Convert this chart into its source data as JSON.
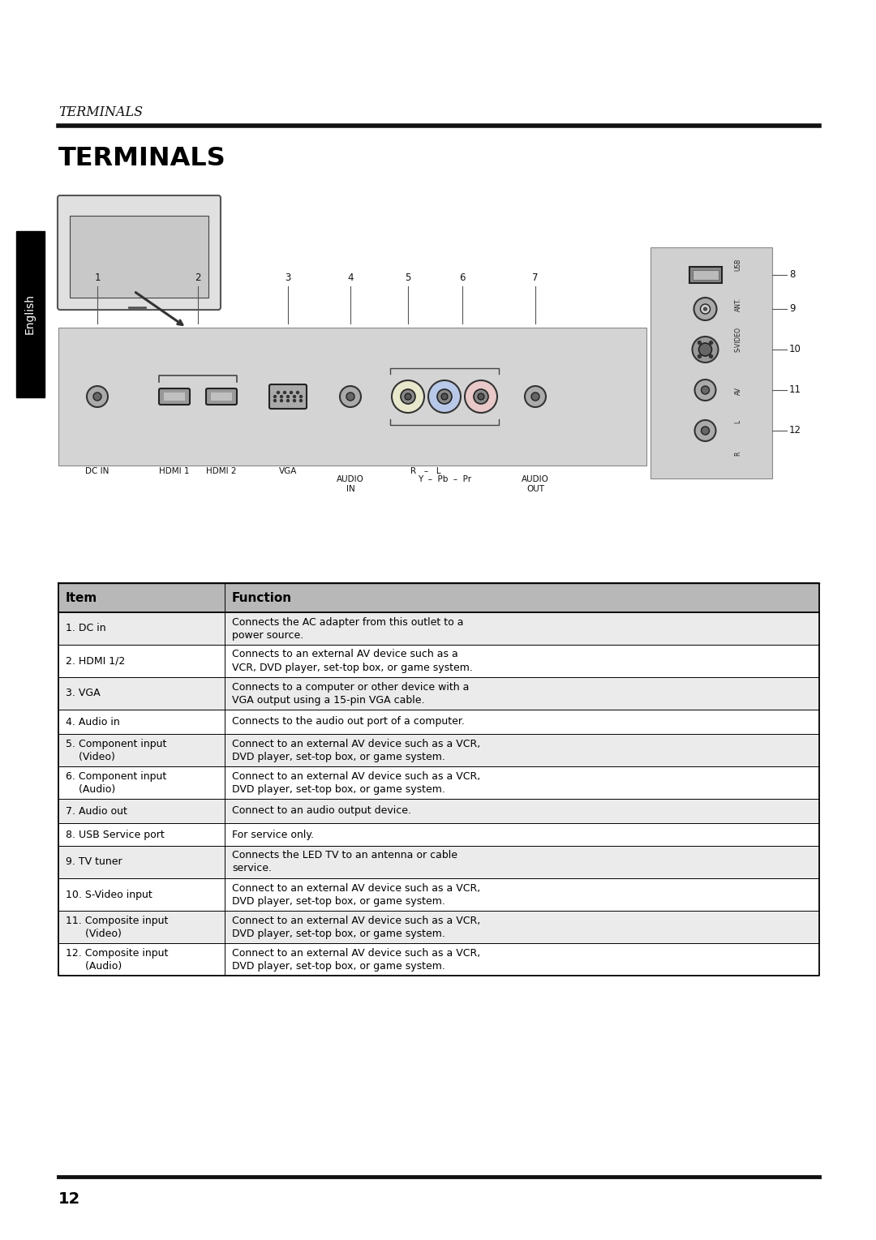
{
  "page_bg": "#ffffff",
  "header_italic_text": "TERMINALS",
  "header_bold_text": "TERMINALS",
  "table_header_bg": "#b8b8b8",
  "table_row_bg_odd": "#ebebeb",
  "table_row_bg_even": "#ffffff",
  "table_border_color": "#000000",
  "table_col1_header": "Item",
  "table_col2_header": "Function",
  "table_rows": [
    [
      "1. DC in",
      "Connects the AC adapter from this outlet to a\npower source."
    ],
    [
      "2. HDMI 1/2",
      "Connects to an external AV device such as a\nVCR, DVD player, set-top box, or game system."
    ],
    [
      "3. VGA",
      "Connects to a computer or other device with a\nVGA output using a 15-pin VGA cable."
    ],
    [
      "4. Audio in",
      "Connects to the audio out port of a computer."
    ],
    [
      "5. Component input\n    (Video)",
      "Connect to an external AV device such as a VCR,\nDVD player, set-top box, or game system."
    ],
    [
      "6. Component input\n    (Audio)",
      "Connect to an external AV device such as a VCR,\nDVD player, set-top box, or game system."
    ],
    [
      "7. Audio out",
      "Connect to an audio output device."
    ],
    [
      "8. USB Service port",
      "For service only."
    ],
    [
      "9. TV tuner",
      "Connects the LED TV to an antenna or cable\nservice."
    ],
    [
      "10. S-Video input",
      "Connect to an external AV device such as a VCR,\nDVD player, set-top box, or game system."
    ],
    [
      "11. Composite input\n      (Video)",
      "Connect to an external AV device such as a VCR,\nDVD player, set-top box, or game system."
    ],
    [
      "12. Composite input\n      (Audio)",
      "Connect to an external AV device such as a VCR,\nDVD player, set-top box, or game system."
    ]
  ],
  "page_number": "12",
  "english_text": "English"
}
